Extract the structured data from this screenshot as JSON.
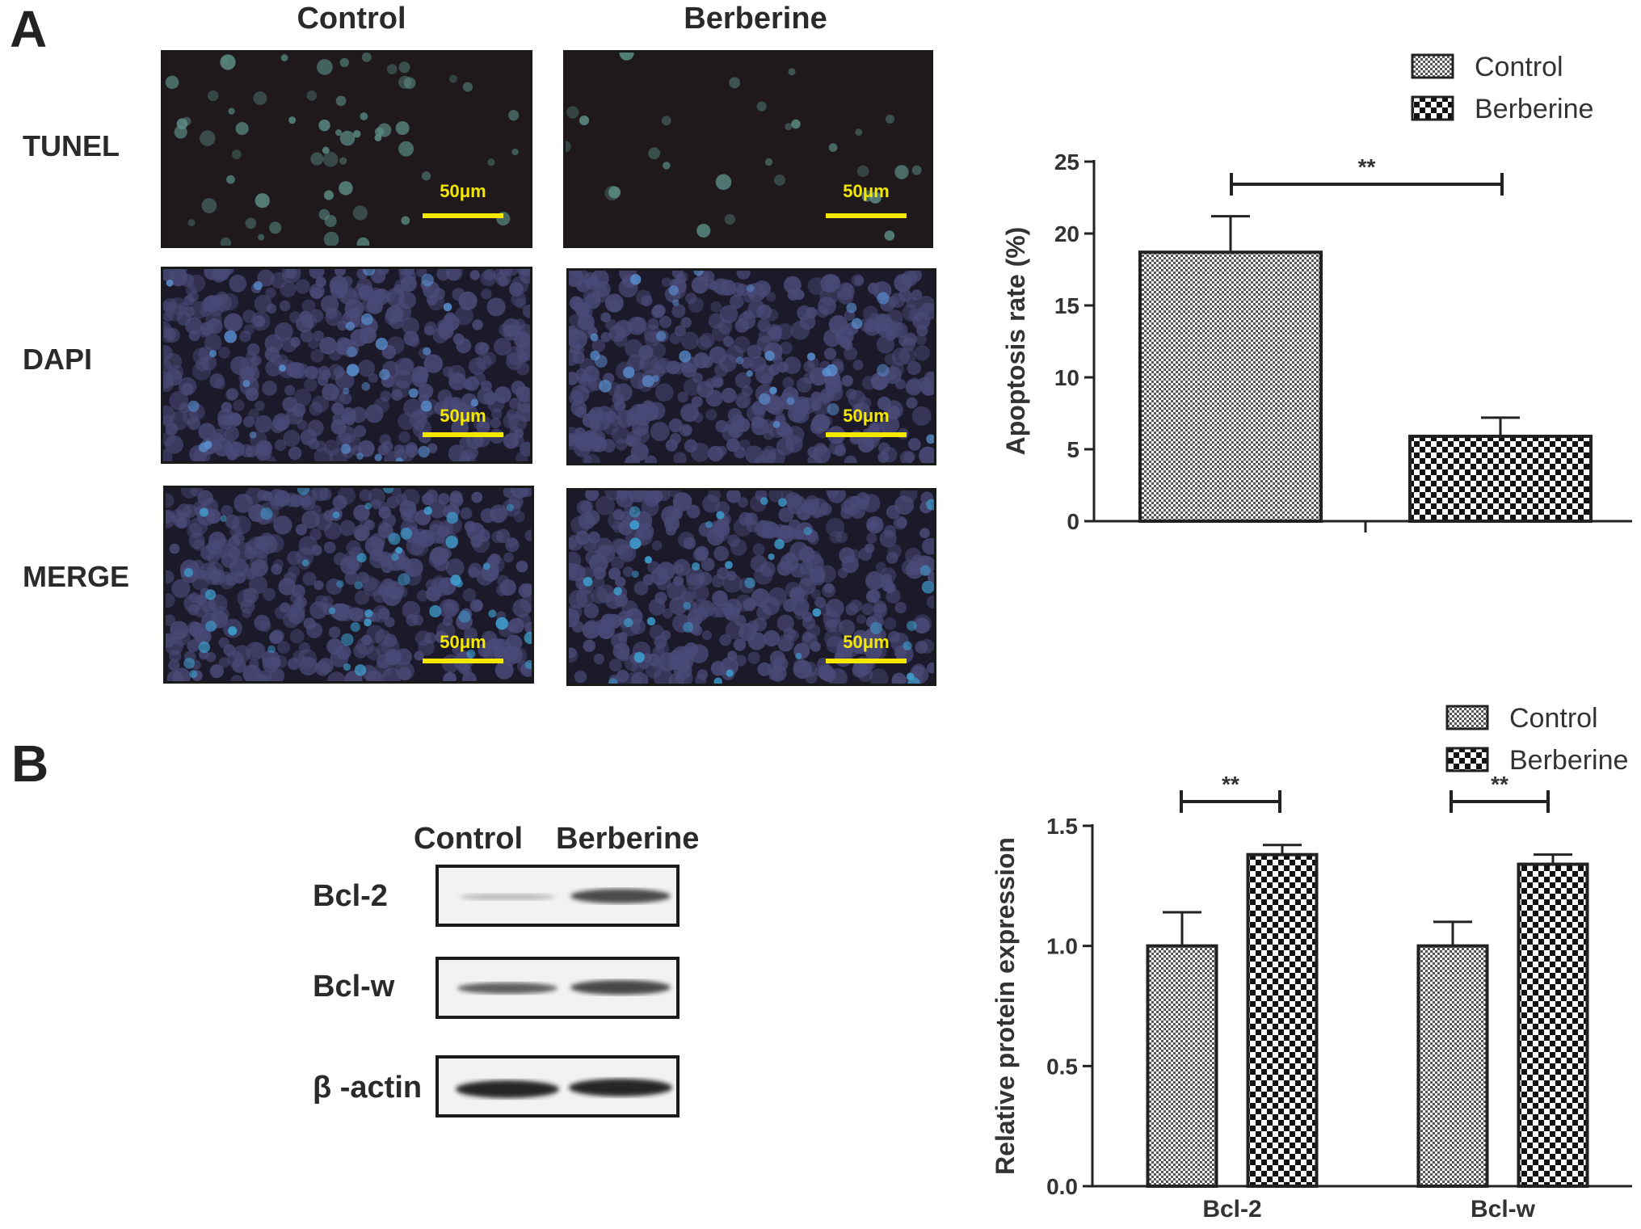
{
  "panels": {
    "a": {
      "letter": "A",
      "columns": [
        "Control",
        "Berberine"
      ],
      "rows": [
        "TUNEL",
        "DAPI",
        "MERGE"
      ],
      "scale_label": "50μm"
    },
    "b": {
      "letter": "B",
      "blot_columns": [
        "Control",
        "Berberine"
      ],
      "blot_rows": [
        "Bcl-2",
        "Bcl-w",
        "β -actin"
      ]
    }
  },
  "colors": {
    "scale_bar": "#f4e800",
    "tunel_bg": "#1f191c",
    "dapi_bg": "#1c1a2a",
    "tunel_nuclei": "#5c8f86",
    "dapi_nuclei": "#4a4a78",
    "merge_nuclei": "#3f9fd0"
  },
  "chart_data": [
    {
      "type": "bar",
      "categories": [
        ""
      ],
      "series": [
        {
          "name": "Control",
          "values": [
            18.7
          ],
          "errors": [
            2.5
          ],
          "pattern": "fine-checker"
        },
        {
          "name": "Berberine",
          "values": [
            5.9
          ],
          "errors": [
            1.3
          ],
          "pattern": "coarse-checker"
        }
      ],
      "ylabel": "Apoptosis rate (%)",
      "ylim": [
        0,
        25
      ],
      "yticks": [
        "0",
        "5",
        "10",
        "15",
        "20",
        "25"
      ],
      "significance": [
        {
          "label": "**"
        }
      ],
      "legend": "top-right"
    },
    {
      "type": "bar",
      "categories": [
        "Bcl-2",
        "Bcl-w"
      ],
      "series": [
        {
          "name": "Control",
          "values": [
            1.0,
            1.0
          ],
          "errors": [
            0.14,
            0.1
          ],
          "pattern": "fine-checker"
        },
        {
          "name": "Berberine",
          "values": [
            1.38,
            1.34
          ],
          "errors": [
            0.04,
            0.04
          ],
          "pattern": "coarse-checker"
        }
      ],
      "ylabel": "Relative protein expression",
      "ylim": [
        0,
        1.5
      ],
      "yticks": [
        "0.0",
        "0.5",
        "1.0",
        "1.5"
      ],
      "significance": [
        {
          "label": "**"
        },
        {
          "label": "**"
        }
      ],
      "legend": "top-right"
    }
  ]
}
